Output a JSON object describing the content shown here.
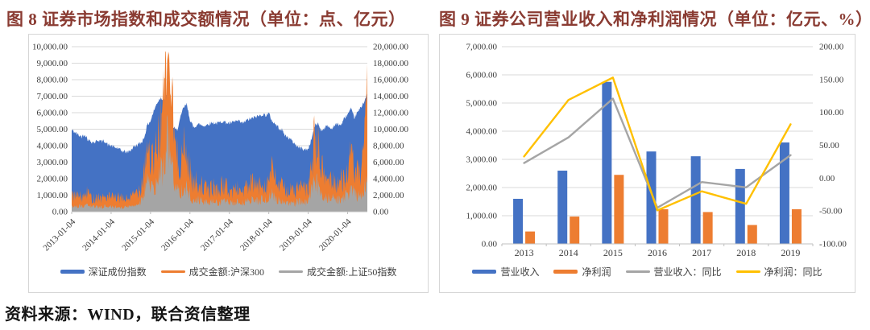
{
  "figure8": {
    "title": "图 8  证券市场指数和成交额情况（单位：点、亿元）"
  },
  "figure9": {
    "title": "图 9 证券公司营业收入和净利润情况（单位：亿元、%）"
  },
  "source_note": "资料来源：WIND，联合资信整理",
  "colors": {
    "blue": "#4472C4",
    "orange": "#ED7D31",
    "gray": "#A5A5A5",
    "yellow": "#FFC000",
    "title_red": "#8A3B32",
    "grid": "#D9D9D9",
    "axis_line": "#BFBFBF",
    "axis_text": "#3B3B3B",
    "panel_border": "#D6D6D6"
  },
  "chart_data": [
    {
      "id": "figure8",
      "type": "area",
      "title": "图 8  证券市场指数和成交额情况（单位：点、亿元）",
      "x_tick_labels": [
        "2013-01-04",
        "2014-01-04",
        "2015-01-04",
        "2016-01-04",
        "2017-01-04",
        "2018-01-04",
        "2019-01-04",
        "2020-01-04"
      ],
      "x_sampling": "monthly estimates 2013-01 through 2020-07 read from dense daily plot",
      "left_axis": {
        "min": 0,
        "max": 10000,
        "step": 1000,
        "unit": "点"
      },
      "right_axis": {
        "min": 0,
        "max": 20000,
        "step": 2000,
        "unit": "亿元"
      },
      "grid": true,
      "legend_position": "bottom",
      "series": [
        {
          "name": "深证成份指数",
          "axis": "left",
          "style": "area",
          "color": "#4472C4",
          "values": [
            4950,
            4800,
            4650,
            4550,
            4700,
            4350,
            4250,
            4200,
            4350,
            4250,
            4300,
            4050,
            4000,
            3900,
            3850,
            3700,
            3650,
            3600,
            3750,
            3950,
            4050,
            4150,
            4450,
            5250,
            5500,
            6100,
            6600,
            6900,
            6800,
            7000,
            5800,
            5100,
            4900,
            5600,
            6300,
            6500,
            5600,
            5100,
            5250,
            5300,
            5200,
            5250,
            5350,
            5400,
            5350,
            5400,
            5500,
            5400,
            5350,
            5400,
            5500,
            5450,
            5350,
            5500,
            5600,
            5650,
            5750,
            5800,
            5900,
            5850,
            5950,
            5500,
            5300,
            5100,
            4950,
            4600,
            4500,
            4300,
            4100,
            3900,
            3850,
            3750,
            3800,
            4400,
            5200,
            5350,
            4900,
            5100,
            5200,
            5000,
            5250,
            5300,
            5250,
            5650,
            5900,
            6200,
            5700,
            6000,
            6300,
            6700,
            7100
          ]
        },
        {
          "name": "成交金额:沪深300",
          "axis": "right",
          "style": "line",
          "color": "#ED7D31",
          "values": [
            1800,
            1600,
            1700,
            1500,
            1600,
            2100,
            1400,
            1500,
            1600,
            1400,
            1600,
            1500,
            1500,
            1400,
            1500,
            1400,
            1300,
            1400,
            1500,
            1800,
            2200,
            2600,
            4500,
            7200,
            5500,
            5200,
            6800,
            9500,
            11000,
            19000,
            14500,
            9000,
            5500,
            5200,
            6500,
            5800,
            4500,
            2800,
            3200,
            3000,
            2500,
            2400,
            2300,
            2600,
            2400,
            2300,
            2900,
            2600,
            2200,
            2100,
            2500,
            2300,
            2200,
            2500,
            2600,
            3000,
            2800,
            2600,
            3200,
            2700,
            3400,
            4500,
            3300,
            2800,
            2600,
            2500,
            2300,
            2200,
            2100,
            2600,
            2500,
            2300,
            2400,
            5000,
            7800,
            6800,
            4500,
            3800,
            3500,
            3400,
            3200,
            3000,
            3200,
            3600,
            4200,
            5600,
            4800,
            3800,
            4200,
            5800,
            12800
          ]
        },
        {
          "name": "成交金额:上证50指数",
          "axis": "right",
          "style": "line",
          "color": "#A5A5A5",
          "values": [
            650,
            550,
            600,
            520,
            560,
            750,
            500,
            520,
            560,
            500,
            560,
            520,
            520,
            470,
            510,
            460,
            450,
            500,
            550,
            680,
            850,
            1000,
            2000,
            3400,
            2500,
            2200,
            2900,
            4000,
            4600,
            8000,
            6000,
            3600,
            2200,
            2100,
            2700,
            2400,
            1800,
            1100,
            1300,
            1200,
            1000,
            950,
            900,
            1050,
            950,
            900,
            1150,
            1050,
            900,
            850,
            1000,
            950,
            900,
            1050,
            1100,
            1250,
            1150,
            1050,
            1350,
            1150,
            1450,
            1900,
            1400,
            1150,
            1050,
            1000,
            950,
            880,
            850,
            1100,
            1050,
            950,
            1000,
            2100,
            3200,
            2800,
            1900,
            1600,
            1450,
            1400,
            1350,
            1250,
            1300,
            1500,
            1800,
            2400,
            2000,
            1600,
            1800,
            2400,
            3500
          ]
        }
      ]
    },
    {
      "id": "figure9",
      "type": "bar+line",
      "title": "图 9 证券公司营业收入和净利润情况（单位：亿元、%）",
      "categories": [
        "2013",
        "2014",
        "2015",
        "2016",
        "2017",
        "2018",
        "2019"
      ],
      "left_axis": {
        "min": 0,
        "max": 7000,
        "step": 1000,
        "unit": "亿元"
      },
      "right_axis": {
        "min": -100,
        "max": 200,
        "step": 50,
        "unit": "%"
      },
      "grid": true,
      "legend_position": "bottom",
      "series": [
        {
          "name": "营业收入",
          "type": "bar",
          "axis": "left",
          "color": "#4472C4",
          "values": [
            1600,
            2600,
            5750,
            3280,
            3110,
            2660,
            3600
          ]
        },
        {
          "name": "净利润",
          "type": "bar",
          "axis": "left",
          "color": "#ED7D31",
          "values": [
            440,
            970,
            2450,
            1230,
            1130,
            670,
            1230
          ]
        },
        {
          "name": "营业收入：同比",
          "type": "line",
          "axis": "right",
          "color": "#A5A5A5",
          "values": [
            23,
            62,
            121,
            -45,
            -6,
            -14,
            35
          ]
        },
        {
          "name": "净利润：同比",
          "type": "line",
          "axis": "right",
          "color": "#FFC000",
          "values": [
            33,
            119,
            153,
            -49,
            -20,
            -39,
            82
          ]
        }
      ]
    }
  ]
}
